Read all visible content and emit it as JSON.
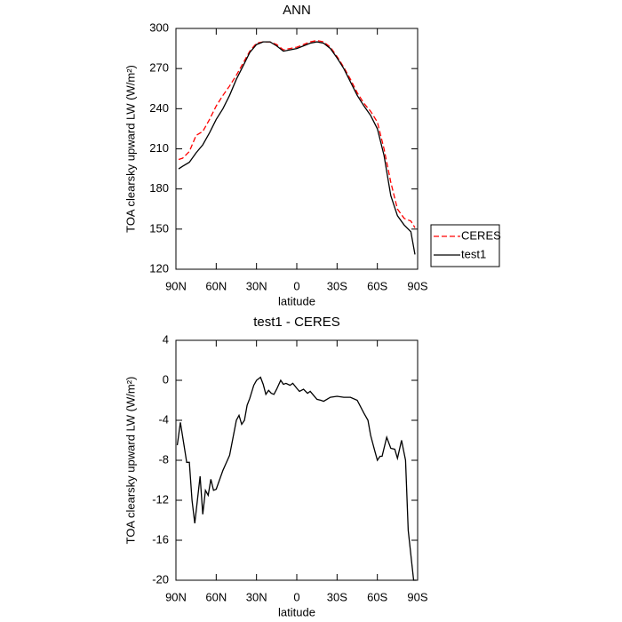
{
  "chart_data": [
    {
      "type": "line",
      "title": "ANN",
      "xlabel": "latitude",
      "ylabel": "TOA clearsky upward LW (W/m²)",
      "x": [
        88,
        85,
        80,
        75,
        70,
        65,
        60,
        55,
        50,
        45,
        40,
        35,
        30,
        25,
        20,
        15,
        10,
        5,
        0,
        -5,
        -10,
        -15,
        -20,
        -25,
        -30,
        -35,
        -40,
        -45,
        -50,
        -55,
        -60,
        -65,
        -70,
        -75,
        -80,
        -85,
        -88
      ],
      "series": [
        {
          "name": "CERES",
          "color": "#ff0000",
          "line_style": "dashed",
          "values": [
            202,
            203,
            208,
            220,
            223,
            232,
            242,
            250,
            257,
            265,
            274,
            283,
            289,
            290,
            290,
            288,
            284,
            285,
            286,
            288,
            290,
            291,
            290,
            286,
            279,
            271,
            262,
            252,
            244,
            238,
            230,
            210,
            185,
            165,
            158,
            156,
            151
          ]
        },
        {
          "name": "test1",
          "color": "#000000",
          "line_style": "solid",
          "values": [
            195,
            197,
            200,
            207,
            213,
            222,
            232,
            240,
            250,
            262,
            272,
            282,
            288,
            290,
            290,
            287,
            283,
            284,
            285,
            287,
            289,
            290,
            289,
            285,
            278,
            270,
            260,
            250,
            242,
            235,
            225,
            205,
            175,
            160,
            153,
            148,
            131
          ]
        }
      ],
      "xlim": [
        90,
        -90
      ],
      "xticks": [
        {
          "value": 90,
          "label": "90N"
        },
        {
          "value": 60,
          "label": "60N"
        },
        {
          "value": 30,
          "label": "30N"
        },
        0,
        {
          "value": -30,
          "label": "30S"
        },
        {
          "value": -60,
          "label": "60S"
        },
        {
          "value": -90,
          "label": "90S"
        }
      ],
      "ylim": [
        120,
        300
      ],
      "yticks": [
        120,
        150,
        180,
        210,
        240,
        270,
        300
      ],
      "legend": "right"
    },
    {
      "type": "line",
      "title": "test1 - CERES",
      "xlabel": "latitude",
      "ylabel": "TOA clearsky upward LW (W/m²)",
      "x": [
        89,
        86.7,
        84,
        82,
        80,
        78,
        76,
        72,
        70,
        68,
        66,
        64,
        62,
        60,
        55,
        50,
        45,
        43,
        41,
        39,
        37,
        35,
        32,
        30,
        27,
        25,
        23,
        21,
        19,
        17,
        15,
        12,
        10,
        8,
        5,
        3,
        0,
        -2,
        -5,
        -8,
        -10,
        -15,
        -18,
        -20,
        -25,
        -30,
        -35,
        -40,
        -45,
        -50,
        -53,
        -55,
        -58,
        -60,
        -62,
        -63.5,
        -67,
        -70,
        -73,
        -75,
        -78,
        -81,
        -83,
        -87,
        -89
      ],
      "series": [
        {
          "name": "test1 - CERES",
          "color": "#000000",
          "line_style": "solid",
          "values": [
            -6.5,
            -4.2,
            -6.5,
            -8.2,
            -8.2,
            -12,
            -14.3,
            -9.6,
            -13.4,
            -11,
            -11.5,
            -9.9,
            -11,
            -10.9,
            -9,
            -7.5,
            -4,
            -3.5,
            -4.4,
            -4,
            -2.5,
            -1.8,
            -0.5,
            0,
            0.3,
            -0.4,
            -1.4,
            -1,
            -1.3,
            -1.4,
            -0.9,
            0,
            -0.4,
            -0.3,
            -0.5,
            -0.3,
            -0.8,
            -1.1,
            -0.9,
            -1.3,
            -1.1,
            -1.9,
            -2,
            -2.1,
            -1.7,
            -1.6,
            -1.7,
            -1.7,
            -2,
            -3.3,
            -4,
            -5.5,
            -7,
            -8,
            -7.6,
            -7.6,
            -5.7,
            -6.8,
            -6.9,
            -7.8,
            -6,
            -8,
            -15,
            -20,
            -20
          ]
        }
      ],
      "xlim": [
        90,
        -90
      ],
      "xticks": [
        {
          "value": 90,
          "label": "90N"
        },
        {
          "value": 60,
          "label": "60N"
        },
        {
          "value": 30,
          "label": "30N"
        },
        0,
        {
          "value": -30,
          "label": "30S"
        },
        {
          "value": -60,
          "label": "60S"
        },
        {
          "value": -90,
          "label": "90S"
        }
      ],
      "ylim": [
        -20,
        4
      ],
      "yticks": [
        -20,
        -16,
        -12,
        -8,
        -4,
        0,
        4
      ]
    }
  ]
}
